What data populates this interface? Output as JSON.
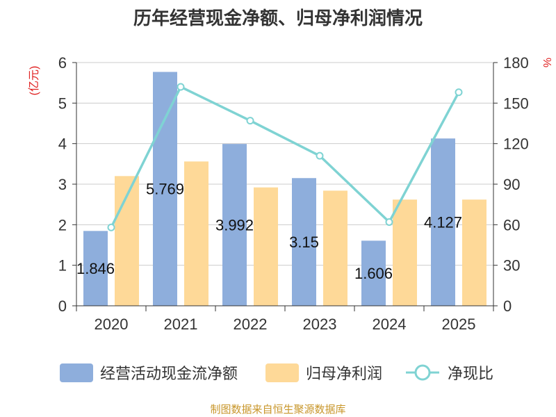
{
  "chart_data": {
    "type": "bar",
    "title": "历年经营现金净额、归母净利润情况",
    "categories": [
      "2020",
      "2021",
      "2022",
      "2023",
      "2024",
      "2025"
    ],
    "series": [
      {
        "name": "经营活动现金流净额",
        "kind": "bar",
        "axis": "left",
        "color": "#8eaedc",
        "values": [
          1.846,
          5.769,
          3.992,
          3.15,
          1.606,
          4.127
        ],
        "labels": [
          "1.846",
          "5.769",
          "3.992",
          "3.15",
          "1.606",
          "4.127"
        ]
      },
      {
        "name": "归母净利润",
        "kind": "bar",
        "axis": "left",
        "color": "#fed998",
        "values": [
          3.2,
          3.56,
          2.92,
          2.84,
          2.62,
          2.62
        ]
      },
      {
        "name": "净现比",
        "kind": "line",
        "axis": "right",
        "color": "#7fd3d3",
        "values": [
          58,
          162,
          137,
          111,
          62,
          158
        ]
      }
    ],
    "y_left": {
      "label": "(亿元)",
      "min": 0,
      "max": 6,
      "ticks": [
        "0",
        "1",
        "2",
        "3",
        "4",
        "5",
        "6"
      ]
    },
    "y_right": {
      "label": "%",
      "min": 0,
      "max": 180,
      "ticks": [
        "0",
        "30",
        "60",
        "90",
        "120",
        "150",
        "180"
      ]
    },
    "grid": true,
    "legend_position": "bottom"
  },
  "source": "制图数据来自恒生聚源数据库"
}
